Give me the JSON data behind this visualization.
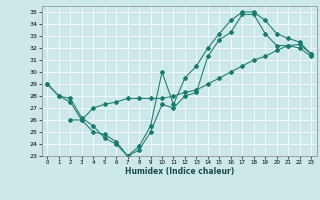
{
  "xlabel": "Humidex (Indice chaleur)",
  "xlim": [
    -0.5,
    23.5
  ],
  "ylim": [
    23,
    35.5
  ],
  "bg_color": "#cce8e8",
  "grid_color": "#ffffff",
  "line_color": "#1a7a6e",
  "line1_x": [
    0,
    1,
    2,
    3,
    4,
    5,
    6,
    7,
    8,
    9,
    10,
    11,
    12,
    13,
    14,
    15,
    16,
    17,
    18,
    19,
    20,
    21,
    22,
    23
  ],
  "line1_y": [
    29,
    28,
    27.8,
    26.2,
    25.5,
    24.5,
    24.0,
    23.0,
    23.5,
    25.0,
    27.3,
    27.0,
    28.0,
    28.3,
    31.3,
    32.7,
    33.3,
    34.8,
    34.8,
    33.2,
    32.2,
    32.2,
    32.0,
    31.3
  ],
  "line2_x": [
    0,
    1,
    2,
    3,
    4,
    5,
    6,
    7,
    8,
    9,
    10,
    11,
    12,
    13,
    14,
    15,
    16,
    17,
    18,
    19,
    20,
    21,
    22,
    23
  ],
  "line2_y": [
    29,
    28,
    27.5,
    26.0,
    25.0,
    24.8,
    24.2,
    23.0,
    23.8,
    25.5,
    30.0,
    27.3,
    29.5,
    30.5,
    32.0,
    33.2,
    34.3,
    35.0,
    35.0,
    34.3,
    33.2,
    32.8,
    32.5,
    31.5
  ],
  "line3_x": [
    2,
    3,
    4,
    5,
    6,
    7,
    8,
    9,
    10,
    11,
    12,
    13,
    14,
    15,
    16,
    17,
    18,
    19,
    20,
    21,
    22,
    23
  ],
  "line3_y": [
    26.0,
    26.0,
    27.0,
    27.3,
    27.5,
    27.8,
    27.8,
    27.8,
    27.8,
    28.0,
    28.3,
    28.5,
    29.0,
    29.5,
    30.0,
    30.5,
    31.0,
    31.3,
    31.8,
    32.2,
    32.3,
    31.5
  ]
}
